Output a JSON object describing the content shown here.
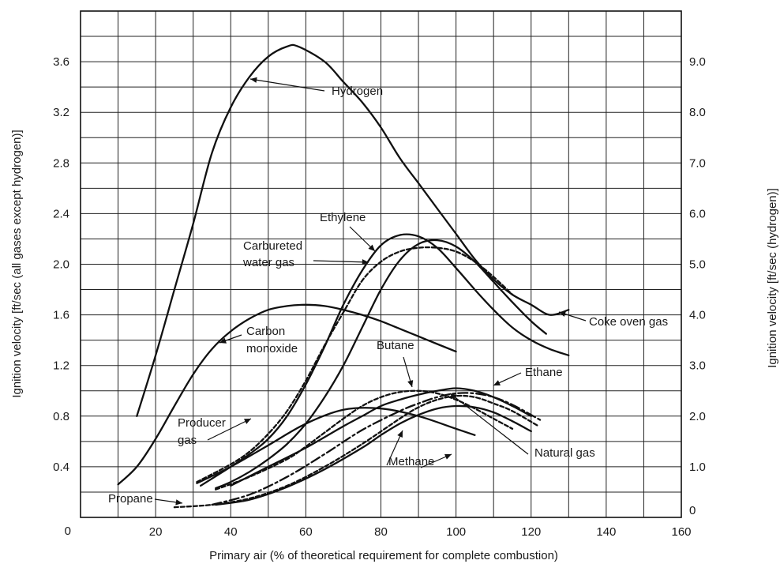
{
  "chart_data": {
    "type": "line",
    "title": "",
    "xlabel": "Primary air (% of theoretical requirement for complete combustion)",
    "ylabel_left": "Ignition velocity [ft/sec (all gases except hydrogen)]",
    "ylabel_right": "Ignition velocity [ft/sec (hydrogen)]",
    "xlim": [
      0,
      160
    ],
    "ylim_left": [
      0,
      4.0
    ],
    "ylim_right": [
      0,
      10.0
    ],
    "grid": true,
    "x_ticks": [
      "20",
      "40",
      "60",
      "80",
      "100",
      "120",
      "140",
      "160"
    ],
    "y_ticks_left": [
      "0",
      "0.4",
      "0.8",
      "1.2",
      "1.6",
      "2.0",
      "2.4",
      "2.8",
      "3.2",
      "3.6"
    ],
    "y_ticks_right": [
      "0",
      "1.0",
      "2.0",
      "3.0",
      "4.0",
      "5.0",
      "6.0",
      "7.0",
      "8.0",
      "9.0"
    ],
    "series": [
      {
        "name": "Hydrogen",
        "axis": "right",
        "style": "solid",
        "x": [
          15,
          20,
          25,
          30,
          35,
          40,
          45,
          50,
          55,
          58,
          65,
          70,
          75,
          80,
          85,
          90,
          95,
          100,
          105,
          110,
          115,
          120,
          125,
          130
        ],
        "y": [
          2.0,
          3.2,
          4.5,
          5.8,
          7.2,
          8.1,
          8.7,
          9.1,
          9.3,
          9.3,
          9.0,
          8.6,
          8.2,
          7.7,
          7.1,
          6.6,
          6.1,
          5.6,
          5.1,
          4.7,
          4.4,
          4.2,
          4.0,
          4.1
        ]
      },
      {
        "name": "Carbon monoxide",
        "axis": "left",
        "style": "solid",
        "x": [
          10,
          15,
          20,
          25,
          30,
          35,
          40,
          45,
          50,
          55,
          60,
          65,
          70,
          75,
          80,
          85,
          90,
          95,
          100
        ],
        "y": [
          0.26,
          0.4,
          0.62,
          0.88,
          1.13,
          1.33,
          1.47,
          1.57,
          1.64,
          1.67,
          1.68,
          1.67,
          1.64,
          1.6,
          1.55,
          1.49,
          1.43,
          1.37,
          1.31
        ]
      },
      {
        "name": "Ethylene",
        "axis": "left",
        "style": "solid",
        "x": [
          32,
          40,
          45,
          50,
          55,
          60,
          65,
          70,
          75,
          80,
          85,
          90,
          95,
          100,
          105,
          110,
          115,
          120,
          125,
          130
        ],
        "y": [
          0.25,
          0.4,
          0.5,
          0.62,
          0.8,
          1.05,
          1.35,
          1.68,
          1.95,
          2.15,
          2.23,
          2.22,
          2.13,
          1.97,
          1.8,
          1.64,
          1.5,
          1.4,
          1.33,
          1.28
        ]
      },
      {
        "name": "Carbureted water gas",
        "axis": "left",
        "style": "dashed",
        "x": [
          31,
          40,
          45,
          50,
          55,
          60,
          65,
          70,
          75,
          80,
          85,
          90,
          95,
          100,
          105,
          110,
          115
        ],
        "y": [
          0.28,
          0.42,
          0.52,
          0.66,
          0.84,
          1.08,
          1.36,
          1.62,
          1.87,
          2.02,
          2.1,
          2.13,
          2.13,
          2.1,
          2.02,
          1.9,
          1.76
        ]
      },
      {
        "name": "Coke oven gas",
        "axis": "left",
        "style": "solid",
        "x": [
          36,
          40,
          45,
          50,
          55,
          60,
          65,
          70,
          75,
          80,
          85,
          90,
          95,
          100,
          105,
          110,
          115,
          120,
          124
        ],
        "y": [
          0.23,
          0.28,
          0.36,
          0.46,
          0.58,
          0.74,
          0.95,
          1.2,
          1.5,
          1.8,
          2.03,
          2.16,
          2.19,
          2.14,
          2.02,
          1.86,
          1.7,
          1.55,
          1.45
        ]
      },
      {
        "name": "Producer gas",
        "axis": "left",
        "style": "solid",
        "x": [
          31,
          40,
          50,
          60,
          70,
          80,
          90,
          100,
          105
        ],
        "y": [
          0.27,
          0.4,
          0.57,
          0.74,
          0.85,
          0.86,
          0.8,
          0.7,
          0.65
        ]
      },
      {
        "name": "Butane",
        "axis": "left",
        "style": "dashed",
        "x": [
          36,
          45,
          55,
          60,
          65,
          70,
          75,
          80,
          85,
          90,
          95,
          100,
          105,
          110,
          115
        ],
        "y": [
          0.22,
          0.32,
          0.46,
          0.56,
          0.67,
          0.78,
          0.88,
          0.95,
          0.99,
          1.0,
          0.98,
          0.93,
          0.86,
          0.78,
          0.7
        ]
      },
      {
        "name": "Ethane",
        "axis": "left",
        "style": "solid",
        "x": [
          40,
          50,
          60,
          70,
          75,
          80,
          85,
          90,
          95,
          100,
          105,
          110,
          115,
          120
        ],
        "y": [
          0.25,
          0.4,
          0.55,
          0.72,
          0.8,
          0.88,
          0.93,
          0.97,
          1.0,
          1.02,
          1.0,
          0.95,
          0.88,
          0.8
        ]
      },
      {
        "name": "Natural gas",
        "axis": "left",
        "style": "dashdot",
        "x": [
          35,
          45,
          55,
          65,
          75,
          85,
          90,
          95,
          100,
          105,
          110,
          115,
          120,
          123
        ],
        "y": [
          0.1,
          0.18,
          0.32,
          0.5,
          0.69,
          0.84,
          0.9,
          0.95,
          0.98,
          0.98,
          0.95,
          0.89,
          0.81,
          0.76
        ]
      },
      {
        "name": "Methane",
        "axis": "left",
        "style": "solid",
        "x": [
          36,
          45,
          55,
          65,
          75,
          80,
          85,
          90,
          95,
          100,
          105,
          110,
          115,
          120
        ],
        "y": [
          0.1,
          0.14,
          0.24,
          0.38,
          0.55,
          0.65,
          0.74,
          0.81,
          0.86,
          0.88,
          0.87,
          0.83,
          0.76,
          0.68
        ]
      },
      {
        "name": "Propane",
        "axis": "left",
        "style": "dashed",
        "x": [
          25,
          35,
          45,
          55,
          65,
          75,
          85,
          90,
          95,
          100,
          105,
          110,
          115,
          122
        ],
        "y": [
          0.08,
          0.1,
          0.15,
          0.25,
          0.4,
          0.58,
          0.78,
          0.87,
          0.93,
          0.96,
          0.95,
          0.9,
          0.84,
          0.72
        ]
      }
    ],
    "annotations": [
      {
        "text": "Hydrogen"
      },
      {
        "text": "Ethylene"
      },
      {
        "text": "Carbureted"
      },
      {
        "text": "water gas"
      },
      {
        "text": "Carbon"
      },
      {
        "text": "monoxide"
      },
      {
        "text": "Butane"
      },
      {
        "text": "Ethane"
      },
      {
        "text": "Coke oven gas"
      },
      {
        "text": "Producer"
      },
      {
        "text": "gas"
      },
      {
        "text": "Natural gas"
      },
      {
        "text": "Methane"
      },
      {
        "text": "Propane"
      }
    ]
  }
}
